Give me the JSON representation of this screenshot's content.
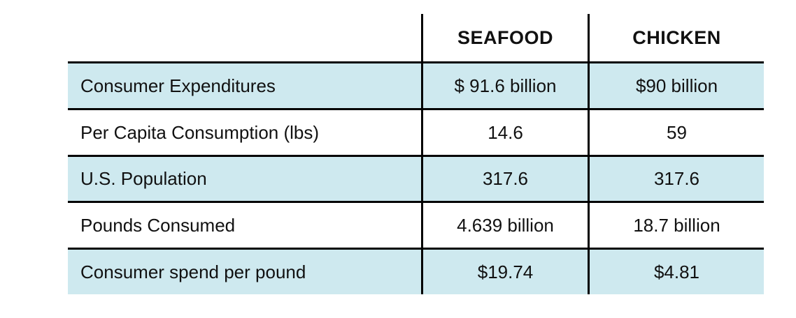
{
  "chart_data": {
    "type": "table",
    "title": "",
    "columns": [
      "",
      "SEAFOOD",
      "CHICKEN"
    ],
    "rows": [
      {
        "label": "Consumer Expenditures",
        "seafood": "$ 91.6 billion",
        "chicken": "$90 billion",
        "highlighted": true
      },
      {
        "label": "Per Capita Consumption (lbs)",
        "seafood": "14.6",
        "chicken": "59",
        "highlighted": false
      },
      {
        "label": "U.S. Population",
        "seafood": "317.6",
        "chicken": "317.6",
        "highlighted": true
      },
      {
        "label": "Pounds Consumed",
        "seafood": "4.639 billion",
        "chicken": "18.7 billion",
        "highlighted": false
      },
      {
        "label": "Consumer spend per pound",
        "seafood": "$19.74",
        "chicken": "$4.81",
        "highlighted": true
      }
    ]
  },
  "colors": {
    "row_highlight": "#cee9ef",
    "border": "#000000",
    "text": "#111111",
    "background": "#ffffff"
  }
}
